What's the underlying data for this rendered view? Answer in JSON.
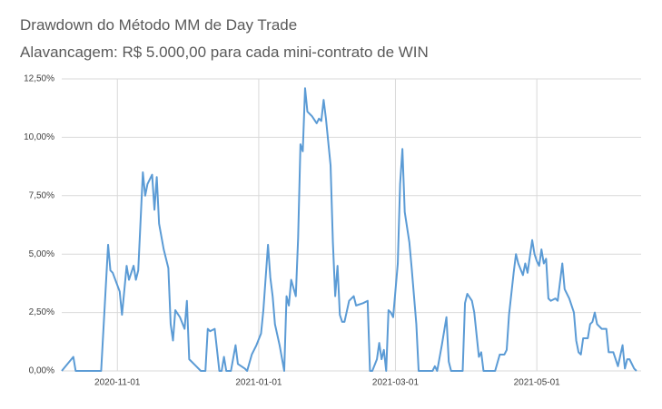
{
  "chart_data": {
    "type": "line",
    "title": "Drawdown do Método MM de Day Trade",
    "subtitle": "Alavancagem: R$ 5.000,00 para cada mini-contrato de WIN",
    "color": "#5b9bd5",
    "grid": true,
    "xlim": [
      "2020-10-08",
      "2021-06-15"
    ],
    "xticks": [
      "2020-11-01",
      "2021-01-01",
      "2021-03-01",
      "2021-05-01"
    ],
    "ylim": [
      0,
      12.5
    ],
    "yticks": [
      {
        "value": 0,
        "label": "0,00%"
      },
      {
        "value": 2.5,
        "label": "2,50%"
      },
      {
        "value": 5,
        "label": "5,00%"
      },
      {
        "value": 7.5,
        "label": "7,50%"
      },
      {
        "value": 10,
        "label": "10,00%"
      },
      {
        "value": 12.5,
        "label": "12,50%"
      }
    ],
    "x": [
      "2020-10-08",
      "2020-10-13",
      "2020-10-14",
      "2020-10-25",
      "2020-10-28",
      "2020-10-29",
      "2020-10-30",
      "2020-11-02",
      "2020-11-03",
      "2020-11-05",
      "2020-11-06",
      "2020-11-08",
      "2020-11-09",
      "2020-11-10",
      "2020-11-12",
      "2020-11-13",
      "2020-11-14",
      "2020-11-16",
      "2020-11-17",
      "2020-11-18",
      "2020-11-19",
      "2020-11-21",
      "2020-11-23",
      "2020-11-24",
      "2020-11-25",
      "2020-11-26",
      "2020-11-28",
      "2020-11-30",
      "2020-12-01",
      "2020-12-02",
      "2020-12-05",
      "2020-12-07",
      "2020-12-09",
      "2020-12-10",
      "2020-12-11",
      "2020-12-13",
      "2020-12-15",
      "2020-12-16",
      "2020-12-17",
      "2020-12-18",
      "2020-12-20",
      "2020-12-22",
      "2020-12-23",
      "2020-12-26",
      "2020-12-27",
      "2020-12-29",
      "2020-12-31",
      "2021-01-02",
      "2021-01-03",
      "2021-01-05",
      "2021-01-06",
      "2021-01-07",
      "2021-01-08",
      "2021-01-10",
      "2021-01-12",
      "2021-01-13",
      "2021-01-14",
      "2021-01-15",
      "2021-01-17",
      "2021-01-18",
      "2021-01-19",
      "2021-01-20",
      "2021-01-21",
      "2021-01-22",
      "2021-01-24",
      "2021-01-26",
      "2021-01-27",
      "2021-01-28",
      "2021-01-29",
      "2021-01-30",
      "2021-02-01",
      "2021-02-02",
      "2021-02-03",
      "2021-02-04",
      "2021-02-05",
      "2021-02-06",
      "2021-02-07",
      "2021-02-09",
      "2021-02-11",
      "2021-02-12",
      "2021-02-15",
      "2021-02-17",
      "2021-02-18",
      "2021-02-19",
      "2021-02-21",
      "2021-02-22",
      "2021-02-23",
      "2021-02-24",
      "2021-02-25",
      "2021-02-26",
      "2021-02-27",
      "2021-02-28",
      "2021-03-02",
      "2021-03-03",
      "2021-03-04",
      "2021-03-05",
      "2021-03-07",
      "2021-03-08",
      "2021-03-10",
      "2021-03-11",
      "2021-03-12",
      "2021-03-17",
      "2021-03-18",
      "2021-03-19",
      "2021-03-21",
      "2021-03-23",
      "2021-03-24",
      "2021-03-25",
      "2021-03-30",
      "2021-03-31",
      "2021-04-01",
      "2021-04-03",
      "2021-04-04",
      "2021-04-06",
      "2021-04-07",
      "2021-04-08",
      "2021-04-13",
      "2021-04-15",
      "2021-04-17",
      "2021-04-18",
      "2021-04-19",
      "2021-04-21",
      "2021-04-22",
      "2021-04-23",
      "2021-04-25",
      "2021-04-26",
      "2021-04-27",
      "2021-04-29",
      "2021-04-30",
      "2021-05-01",
      "2021-05-02",
      "2021-05-03",
      "2021-05-04",
      "2021-05-05",
      "2021-05-06",
      "2021-05-07",
      "2021-05-09",
      "2021-05-10",
      "2021-05-12",
      "2021-05-13",
      "2021-05-15",
      "2021-05-17",
      "2021-05-18",
      "2021-05-19",
      "2021-05-20",
      "2021-05-21",
      "2021-05-23",
      "2021-05-24",
      "2021-05-25",
      "2021-05-26",
      "2021-05-27",
      "2021-05-29",
      "2021-05-30",
      "2021-05-31",
      "2021-06-01",
      "2021-06-03",
      "2021-06-04",
      "2021-06-05",
      "2021-06-07",
      "2021-06-08",
      "2021-06-09",
      "2021-06-10",
      "2021-06-12",
      "2021-06-13"
    ],
    "values": [
      0,
      0.6,
      0,
      0,
      5.4,
      4.3,
      4.2,
      3.4,
      2.4,
      4.5,
      3.9,
      4.5,
      3.9,
      4.3,
      8.5,
      7.5,
      8,
      8.4,
      6.9,
      8.3,
      6.3,
      5.2,
      4.4,
      2,
      1.3,
      2.6,
      2.3,
      1.8,
      3,
      0.5,
      0.2,
      0,
      0,
      1.8,
      1.7,
      1.8,
      0,
      0,
      0.6,
      0,
      0,
      1.1,
      0.3,
      0.1,
      0,
      0.7,
      1.1,
      1.6,
      2.6,
      5.4,
      4,
      3.2,
      2,
      1.1,
      0,
      3.2,
      2.8,
      3.9,
      3.2,
      5.7,
      9.7,
      9.4,
      12.1,
      11.1,
      10.9,
      10.6,
      10.8,
      10.7,
      11.6,
      10.8,
      8.8,
      5.5,
      3.2,
      4.5,
      2.4,
      2.1,
      2.1,
      3,
      3.2,
      2.8,
      2.9,
      3,
      0,
      0,
      0.5,
      1.2,
      0.5,
      0.9,
      0,
      2.6,
      2.5,
      2.3,
      4.6,
      8,
      9.5,
      6.8,
      5.5,
      4.4,
      2,
      0,
      0,
      0,
      0.2,
      0,
      1.1,
      2.3,
      0.4,
      0,
      0,
      2.9,
      3.3,
      3,
      2.5,
      0.6,
      0.8,
      0,
      0,
      0.7,
      0.7,
      0.9,
      2.4,
      4.2,
      5,
      4.6,
      4.1,
      4.6,
      4.2,
      5.6,
      5,
      4.7,
      4.5,
      5.2,
      4.6,
      4.8,
      3.1,
      3,
      3.1,
      3,
      4.6,
      3.5,
      3.1,
      2.5,
      1.3,
      0.8,
      0.7,
      1.4,
      1.4,
      2,
      2.1,
      2.5,
      2,
      1.8,
      1.8,
      1.8,
      0.8,
      0.8,
      0.5,
      0.2,
      1.1,
      0.1,
      0.5,
      0.5,
      0.1,
      0
    ]
  }
}
